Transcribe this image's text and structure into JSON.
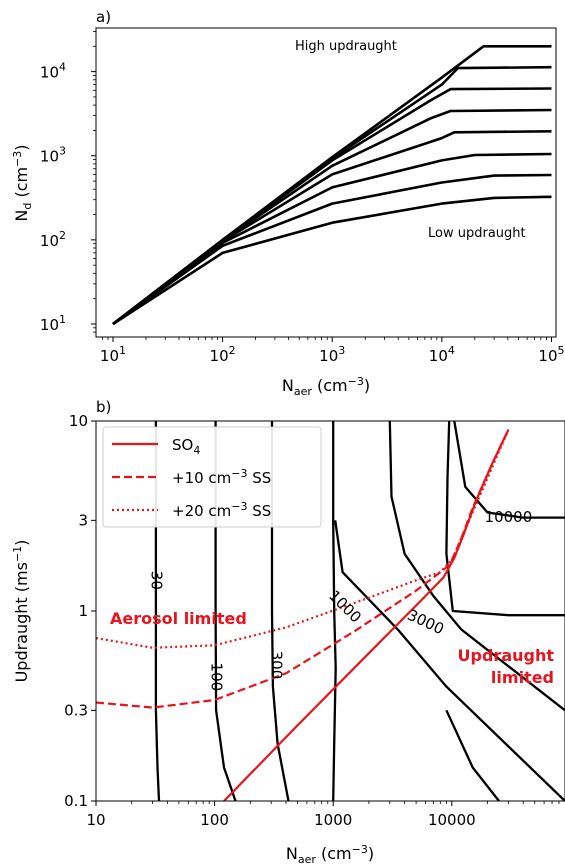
{
  "chart_data": [
    {
      "panel_label": "a)",
      "type": "line",
      "xscale": "log",
      "yscale": "log",
      "xlim": [
        7,
        110000
      ],
      "ylim": [
        7,
        33000
      ],
      "xticks": [
        10,
        100,
        1000,
        10000,
        100000
      ],
      "xtick_labels": [
        [
          "10",
          "1"
        ],
        [
          "10",
          "2"
        ],
        [
          "10",
          "3"
        ],
        [
          "10",
          "4"
        ],
        [
          "10",
          "5"
        ]
      ],
      "yticks": [
        10,
        100,
        1000,
        10000
      ],
      "ytick_labels": [
        [
          "10",
          "1"
        ],
        [
          "10",
          "2"
        ],
        [
          "10",
          "3"
        ],
        [
          "10",
          "4"
        ]
      ],
      "xlabel": {
        "base": "N",
        "sub": "aer",
        "rest": " (cm",
        "sup": "−3",
        "end": ")"
      },
      "ylabel": {
        "base": "N",
        "sub": "d",
        "rest": " (cm",
        "sup": "−3",
        "end": ")"
      },
      "annotations": {
        "high": "High updraught",
        "low": "Low updraught"
      },
      "series": [
        {
          "color": "#000000",
          "points": [
            [
              10,
              10
            ],
            [
              100,
              70
            ],
            [
              1000,
              160
            ],
            [
              10000,
              270
            ],
            [
              30000,
              315
            ],
            [
              100000,
              325
            ]
          ]
        },
        {
          "color": "#000000",
          "points": [
            [
              10,
              10
            ],
            [
              100,
              85
            ],
            [
              1000,
              270
            ],
            [
              10000,
              480
            ],
            [
              30000,
              580
            ],
            [
              100000,
              590
            ]
          ]
        },
        {
          "color": "#000000",
          "points": [
            [
              10,
              10
            ],
            [
              100,
              92
            ],
            [
              1000,
              420
            ],
            [
              10000,
              880
            ],
            [
              20000,
              1020
            ],
            [
              100000,
              1050
            ]
          ]
        },
        {
          "color": "#000000",
          "points": [
            [
              10,
              10
            ],
            [
              100,
              96
            ],
            [
              1000,
              600
            ],
            [
              10000,
              1620
            ],
            [
              13000,
              1900
            ],
            [
              100000,
              1950
            ]
          ]
        },
        {
          "color": "#000000",
          "points": [
            [
              10,
              10
            ],
            [
              100,
              98
            ],
            [
              1000,
              760
            ],
            [
              8000,
              2800
            ],
            [
              12000,
              3400
            ],
            [
              100000,
              3500
            ]
          ]
        },
        {
          "color": "#000000",
          "points": [
            [
              10,
              10
            ],
            [
              100,
              99
            ],
            [
              1000,
              880
            ],
            [
              8000,
              4600
            ],
            [
              12000,
              6200
            ],
            [
              100000,
              6300
            ]
          ]
        },
        {
          "color": "#000000",
          "points": [
            [
              10,
              10
            ],
            [
              100,
              100
            ],
            [
              1000,
              930
            ],
            [
              10000,
              7000
            ],
            [
              14000,
              11000
            ],
            [
              100000,
              11300
            ]
          ]
        },
        {
          "color": "#000000",
          "points": [
            [
              10,
              10
            ],
            [
              100,
              100
            ],
            [
              1000,
              960
            ],
            [
              10000,
              8500
            ],
            [
              24000,
              20000
            ],
            [
              100000,
              20000
            ]
          ]
        }
      ]
    },
    {
      "panel_label": "b)",
      "type": "line",
      "xscale": "log",
      "yscale": "log",
      "xlim": [
        10,
        90000
      ],
      "ylim": [
        0.1,
        10
      ],
      "xticks": [
        10,
        100,
        1000,
        10000
      ],
      "xtick_labels": [
        "10",
        "100",
        "1000",
        "10000"
      ],
      "yticks": [
        0.1,
        0.3,
        1,
        3,
        10
      ],
      "ytick_labels": [
        "0.1",
        "0.3",
        "1",
        "3",
        "10"
      ],
      "xlabel": {
        "base": "N",
        "sub": "aer",
        "rest": " (cm",
        "sup": "−3",
        "end": ")"
      },
      "ylabel": {
        "base": "Updraught (ms",
        "sup": "−1",
        "end": ")"
      },
      "contours": [
        {
          "level": 30,
          "label": "30",
          "label_at": [
            32,
            1.45
          ],
          "points": [
            [
              34,
              0.1
            ],
            [
              33,
              0.15
            ],
            [
              32,
              0.3
            ],
            [
              32,
              1
            ],
            [
              32,
              3
            ],
            [
              32,
              10
            ]
          ]
        },
        {
          "level": 100,
          "label": "100",
          "label_at": [
            103,
            0.45
          ],
          "points": [
            [
              150,
              0.1
            ],
            [
              120,
              0.15
            ],
            [
              103,
              0.3
            ],
            [
              102,
              1
            ],
            [
              102,
              3
            ],
            [
              102,
              10
            ]
          ]
        },
        {
          "level": 300,
          "label": "300",
          "label_at": [
            330,
            0.52
          ],
          "points": [
            [
              420,
              0.1
            ],
            [
              340,
              0.2
            ],
            [
              310,
              0.4
            ],
            [
              305,
              1
            ],
            [
              305,
              3
            ],
            [
              305,
              10
            ]
          ]
        },
        {
          "level": 1000,
          "label": "1000",
          "label_at": [
            1250,
            1.05
          ],
          "points": [
            [
              1000,
              0.1
            ],
            [
              1020,
              0.2
            ],
            [
              1050,
              0.5
            ],
            [
              1020,
              1
            ],
            [
              1000,
              3
            ],
            [
              1000,
              10
            ]
          ]
        },
        {
          "level": 1000,
          "points": [
            [
              90000,
              0.1
            ],
            [
              9000,
              0.4
            ],
            [
              3500,
              0.8
            ],
            [
              1200,
              1.6
            ],
            [
              1040,
              3
            ]
          ]
        },
        {
          "level": 3000,
          "label": "3000",
          "label_at": [
            6000,
            0.87
          ],
          "points": [
            [
              90000,
              0.3
            ],
            [
              12000,
              0.8
            ],
            [
              7000,
              1.2
            ],
            [
              4000,
              2
            ],
            [
              3100,
              4
            ],
            [
              3000,
              10
            ]
          ]
        },
        {
          "level": 3000,
          "points": [
            [
              25000,
              0.1
            ],
            [
              15000,
              0.15
            ],
            [
              9000,
              0.3
            ]
          ]
        },
        {
          "level": 10000,
          "label": "10000",
          "label_at": [
            30000,
            3.1
          ],
          "points": [
            [
              90000,
              0.95
            ],
            [
              30000,
              0.95
            ],
            [
              10200,
              1
            ],
            [
              9000,
              2
            ],
            [
              9200,
              5
            ],
            [
              9500,
              10
            ]
          ]
        },
        {
          "level": 10000,
          "points": [
            [
              90000,
              3.1
            ],
            [
              40000,
              3.1
            ],
            [
              20000,
              3.3
            ],
            [
              13000,
              4.5
            ],
            [
              10500,
              10
            ]
          ]
        }
      ],
      "lines": [
        {
          "name": "SO4",
          "style": "solid",
          "color": "#e8141d",
          "points": [
            [
              120,
              0.1
            ],
            [
              500,
              0.25
            ],
            [
              2000,
              0.6
            ],
            [
              6000,
              1.2
            ],
            [
              8500,
              1.5
            ],
            [
              9500,
              1.7
            ],
            [
              10500,
              1.9
            ],
            [
              12500,
              2.5
            ],
            [
              16000,
              3.8
            ],
            [
              22000,
              6
            ],
            [
              30000,
              9
            ]
          ]
        },
        {
          "name": "+10 cm-3 SS",
          "style": "dashed",
          "color": "#e8141d",
          "points": [
            [
              10,
              0.33
            ],
            [
              30,
              0.31
            ],
            [
              100,
              0.34
            ],
            [
              400,
              0.47
            ],
            [
              1500,
              0.78
            ],
            [
              5000,
              1.28
            ],
            [
              8000,
              1.6
            ],
            [
              9000,
              1.7
            ],
            [
              10000,
              1.85
            ],
            [
              12000,
              2.4
            ],
            [
              15000,
              3.5
            ],
            [
              22000,
              6
            ],
            [
              30000,
              9
            ]
          ]
        },
        {
          "name": "+20 cm-3 SS",
          "style": "dotted",
          "color": "#e8141d",
          "points": [
            [
              10,
              0.72
            ],
            [
              30,
              0.64
            ],
            [
              100,
              0.66
            ],
            [
              400,
              0.82
            ],
            [
              1500,
              1.1
            ],
            [
              5000,
              1.45
            ],
            [
              8000,
              1.6
            ],
            [
              10000,
              1.85
            ],
            [
              13000,
              2.7
            ],
            [
              20000,
              5
            ],
            [
              30000,
              9
            ]
          ]
        }
      ],
      "legend": {
        "position": "upper-left",
        "entries": [
          {
            "base": "SO",
            "sub": "4",
            "style": "solid"
          },
          {
            "base": "+10 cm",
            "sup": "−3",
            "end": " SS",
            "style": "dashed"
          },
          {
            "base": "+20 cm",
            "sup": "−3",
            "end": " SS",
            "style": "dotted"
          }
        ]
      },
      "annotations": {
        "aerosol_limited": "Aerosol limited",
        "updraught_limited_1": "Updraught",
        "updraught_limited_2": "limited"
      }
    }
  ]
}
